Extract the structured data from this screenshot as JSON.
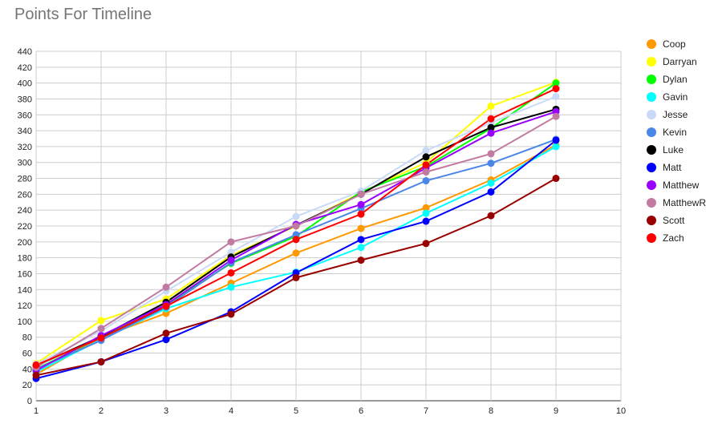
{
  "chart_data": {
    "type": "line",
    "title": "Points For Timeline",
    "xlabel": "",
    "ylabel": "",
    "xlim": [
      1,
      10
    ],
    "ylim": [
      0,
      450
    ],
    "x_ticks": [
      1,
      2,
      3,
      4,
      5,
      6,
      7,
      8,
      9,
      10
    ],
    "y_ticks": [
      0,
      20,
      40,
      60,
      80,
      100,
      120,
      140,
      160,
      180,
      200,
      220,
      240,
      260,
      280,
      300,
      320,
      340,
      360,
      380,
      400,
      420,
      440
    ],
    "grid": true,
    "legend_position": "right",
    "x": [
      1,
      2,
      3,
      4,
      5,
      6,
      7,
      8,
      9
    ],
    "series": [
      {
        "name": "Coop",
        "color": "#ff9900",
        "values": [
          33,
          80,
          110,
          148,
          186,
          217,
          243,
          278,
          322
        ]
      },
      {
        "name": "Darryan",
        "color": "#ffff00",
        "values": [
          47,
          101,
          128,
          183,
          220,
          262,
          300,
          371,
          401
        ]
      },
      {
        "name": "Dylan",
        "color": "#00ff00",
        "values": [
          40,
          80,
          121,
          173,
          207,
          263,
          295,
          343,
          400
        ]
      },
      {
        "name": "Gavin",
        "color": "#00ffff",
        "values": [
          36,
          77,
          116,
          143,
          162,
          193,
          236,
          274,
          320
        ]
      },
      {
        "name": "Jesse",
        "color": "#c9daf8",
        "values": [
          46,
          88,
          138,
          187,
          232,
          264,
          315,
          350,
          383
        ]
      },
      {
        "name": "Kevin",
        "color": "#4a86e8",
        "values": [
          40,
          76,
          118,
          174,
          209,
          242,
          277,
          299,
          329
        ]
      },
      {
        "name": "Luke",
        "color": "#000000",
        "values": [
          44,
          81,
          124,
          181,
          221,
          260,
          307,
          344,
          367
        ]
      },
      {
        "name": "Matt",
        "color": "#0000ff",
        "values": [
          28,
          49,
          77,
          112,
          161,
          203,
          226,
          263,
          328
        ]
      },
      {
        "name": "Matthew",
        "color": "#9900ff",
        "values": [
          38,
          82,
          121,
          177,
          222,
          247,
          293,
          337,
          364
        ]
      },
      {
        "name": "MatthewR",
        "color": "#c27ba0",
        "values": [
          42,
          91,
          143,
          200,
          220,
          260,
          288,
          311,
          358
        ]
      },
      {
        "name": "Scott",
        "color": "#990000",
        "values": [
          32,
          49,
          85,
          109,
          155,
          177,
          198,
          233,
          280
        ]
      },
      {
        "name": "Zach",
        "color": "#ff0000",
        "values": [
          45,
          79,
          119,
          161,
          203,
          235,
          297,
          355,
          393
        ]
      }
    ]
  }
}
